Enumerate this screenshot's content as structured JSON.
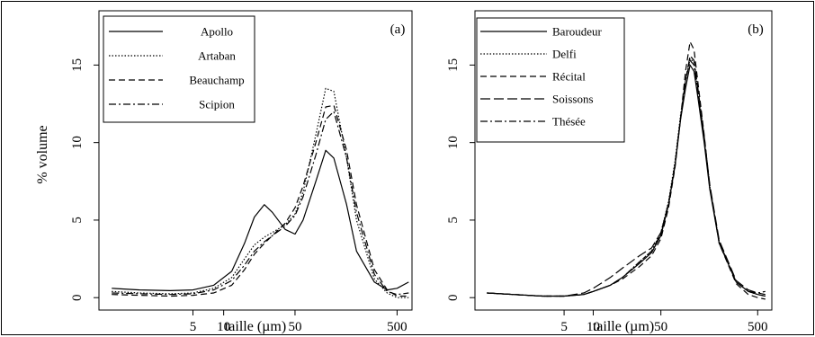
{
  "chart_data": [
    {
      "type": "line",
      "panel_label": "(a)",
      "xlabel": "taille (µm)",
      "ylabel": "% volume",
      "x_scale": "log",
      "xlim": [
        0.6,
        700
      ],
      "ylim": [
        -0.8,
        18.5
      ],
      "x_ticks": [
        {
          "value": 5,
          "label": "5"
        },
        {
          "value": 10,
          "label": "10"
        },
        {
          "value": 50,
          "label": "50"
        },
        {
          "value": 500,
          "label": "500"
        }
      ],
      "y_ticks": [
        {
          "value": 0,
          "label": "0"
        },
        {
          "value": 5,
          "label": "5"
        },
        {
          "value": 10,
          "label": "10"
        },
        {
          "value": 15,
          "label": "15"
        }
      ],
      "legend_position": "top-left",
      "series": [
        {
          "name": "Apollo",
          "dash": "solid",
          "x": [
            0.8,
            1.5,
            3,
            5,
            8,
            12,
            16,
            20,
            25,
            30,
            40,
            50,
            60,
            80,
            100,
            120,
            160,
            200,
            300,
            400,
            500,
            650
          ],
          "y": [
            0.6,
            0.5,
            0.45,
            0.5,
            0.8,
            1.7,
            3.5,
            5.2,
            6.0,
            5.5,
            4.4,
            4.1,
            5.0,
            7.5,
            9.5,
            9.0,
            6.0,
            3.0,
            1.0,
            0.5,
            0.6,
            1.0
          ]
        },
        {
          "name": "Artaban",
          "dash": "dotted",
          "x": [
            0.8,
            1.5,
            3,
            5,
            8,
            12,
            16,
            20,
            25,
            30,
            40,
            50,
            60,
            80,
            100,
            120,
            160,
            200,
            300,
            400,
            500,
            650
          ],
          "y": [
            0.4,
            0.3,
            0.25,
            0.3,
            0.6,
            1.3,
            2.5,
            3.4,
            3.9,
            4.2,
            4.7,
            5.4,
            6.8,
            10.5,
            13.5,
            13.3,
            9.0,
            5.0,
            1.2,
            0.3,
            0.0,
            0.0
          ]
        },
        {
          "name": "Beauchamp",
          "dash": "dashed",
          "x": [
            0.8,
            1.5,
            3,
            5,
            8,
            12,
            16,
            20,
            25,
            30,
            40,
            50,
            60,
            80,
            100,
            120,
            160,
            200,
            300,
            400,
            500,
            650
          ],
          "y": [
            0.2,
            0.15,
            0.1,
            0.15,
            0.3,
            0.8,
            1.8,
            2.8,
            3.5,
            4.0,
            4.8,
            5.8,
            7.2,
            10.0,
            12.3,
            12.4,
            9.5,
            6.0,
            1.8,
            0.5,
            0.1,
            0.1
          ]
        },
        {
          "name": "Scipion",
          "dash": "dashdot",
          "x": [
            0.8,
            1.5,
            3,
            5,
            8,
            12,
            16,
            20,
            25,
            30,
            40,
            50,
            60,
            80,
            100,
            120,
            160,
            200,
            300,
            400,
            500,
            650
          ],
          "y": [
            0.3,
            0.25,
            0.2,
            0.25,
            0.5,
            1.1,
            2.1,
            3.0,
            3.6,
            4.0,
            4.6,
            5.3,
            6.5,
            9.2,
            11.5,
            12.0,
            9.0,
            5.5,
            1.5,
            0.4,
            0.2,
            0.3
          ]
        }
      ]
    },
    {
      "type": "line",
      "panel_label": "(b)",
      "xlabel": "taille (µm)",
      "ylabel": "",
      "x_scale": "log",
      "xlim": [
        0.6,
        700
      ],
      "ylim": [
        -0.8,
        18.5
      ],
      "x_ticks": [
        {
          "value": 5,
          "label": "5"
        },
        {
          "value": 10,
          "label": "10"
        },
        {
          "value": 50,
          "label": "50"
        },
        {
          "value": 500,
          "label": "500"
        }
      ],
      "y_ticks": [
        {
          "value": 0,
          "label": "0"
        },
        {
          "value": 5,
          "label": "5"
        },
        {
          "value": 10,
          "label": "10"
        },
        {
          "value": 15,
          "label": "15"
        }
      ],
      "legend_position": "top-left",
      "series": [
        {
          "name": "Baroudeur",
          "dash": "solid",
          "x": [
            0.8,
            1.5,
            3,
            5,
            8,
            10,
            15,
            20,
            30,
            40,
            50,
            60,
            70,
            80,
            90,
            100,
            110,
            120,
            140,
            160,
            200,
            300,
            400,
            500,
            600
          ],
          "y": [
            0.3,
            0.2,
            0.1,
            0.1,
            0.2,
            0.4,
            0.8,
            1.3,
            2.2,
            2.9,
            4.0,
            6.0,
            8.5,
            11.5,
            13.5,
            15.0,
            14.6,
            13.0,
            10.0,
            7.0,
            3.5,
            1.0,
            0.4,
            0.2,
            0.1
          ]
        },
        {
          "name": "Delfi",
          "dash": "dotted",
          "x": [
            0.8,
            1.5,
            3,
            5,
            8,
            10,
            15,
            20,
            30,
            40,
            50,
            60,
            70,
            80,
            90,
            100,
            110,
            120,
            140,
            160,
            200,
            300,
            400,
            500,
            600
          ],
          "y": [
            0.3,
            0.2,
            0.1,
            0.1,
            0.2,
            0.4,
            0.8,
            1.3,
            2.3,
            3.0,
            4.2,
            6.2,
            8.8,
            11.8,
            14.0,
            15.4,
            15.2,
            13.5,
            10.3,
            7.2,
            3.6,
            1.0,
            0.4,
            0.2,
            0.1
          ]
        },
        {
          "name": "Récital",
          "dash": "dashed",
          "x": [
            0.8,
            1.5,
            3,
            5,
            8,
            10,
            15,
            20,
            30,
            40,
            50,
            60,
            70,
            80,
            90,
            100,
            110,
            120,
            140,
            160,
            200,
            300,
            400,
            500,
            600
          ],
          "y": [
            0.3,
            0.2,
            0.1,
            0.1,
            0.2,
            0.4,
            0.8,
            1.2,
            2.0,
            2.7,
            3.8,
            5.8,
            8.4,
            11.6,
            14.6,
            16.5,
            16.0,
            14.0,
            10.5,
            7.2,
            3.5,
            0.9,
            0.2,
            0.0,
            -0.1
          ]
        },
        {
          "name": "Soissons",
          "dash": "longdash",
          "x": [
            0.8,
            1.5,
            3,
            5,
            8,
            10,
            15,
            20,
            30,
            40,
            50,
            60,
            70,
            80,
            90,
            100,
            110,
            120,
            140,
            160,
            200,
            300,
            400,
            500,
            600
          ],
          "y": [
            0.3,
            0.2,
            0.1,
            0.1,
            0.3,
            0.6,
            1.3,
            1.9,
            2.7,
            3.2,
            4.2,
            6.1,
            8.6,
            11.6,
            14.0,
            15.6,
            15.3,
            13.6,
            10.4,
            7.3,
            3.7,
            1.1,
            0.5,
            0.3,
            0.2
          ]
        },
        {
          "name": "Thésée",
          "dash": "dashdot",
          "x": [
            0.8,
            1.5,
            3,
            5,
            8,
            10,
            15,
            20,
            30,
            40,
            50,
            60,
            70,
            80,
            90,
            100,
            110,
            120,
            140,
            160,
            200,
            300,
            400,
            500,
            600
          ],
          "y": [
            0.3,
            0.2,
            0.1,
            0.1,
            0.2,
            0.4,
            0.8,
            1.3,
            2.3,
            3.0,
            4.1,
            6.0,
            8.6,
            11.6,
            14.0,
            15.3,
            15.0,
            13.4,
            10.2,
            7.1,
            3.6,
            1.0,
            0.4,
            0.3,
            0.4
          ]
        }
      ]
    }
  ]
}
